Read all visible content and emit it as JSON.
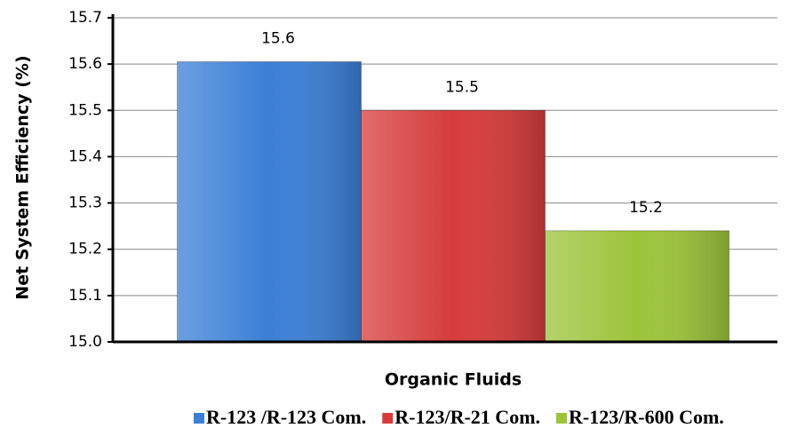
{
  "chart_data": {
    "type": "bar",
    "y_label": "Net System Efficiency (%)",
    "x_label": "Organic Fluids",
    "categories": [
      null
    ],
    "series": [
      {
        "name": "R-123 /R-123 Com.",
        "color": "#3b7fd6",
        "values": [
          15.605
        ],
        "value_labels": [
          "15.6"
        ]
      },
      {
        "name": "R-123/R-21 Com.",
        "color": "#d63b3b",
        "values": [
          15.5
        ],
        "value_labels": [
          "15.5"
        ]
      },
      {
        "name": "R-123/R-600 Com.",
        "color": "#9cc43a",
        "values": [
          15.24
        ],
        "value_labels": [
          "15.2"
        ]
      }
    ],
    "ylim": [
      15,
      15.7
    ],
    "yticks": [
      {
        "value": 15,
        "label": "15.0"
      },
      15.1,
      15.2,
      15.3,
      15.4,
      15.5,
      15.6,
      15.7
    ],
    "grid": true,
    "legend": "bottom"
  }
}
